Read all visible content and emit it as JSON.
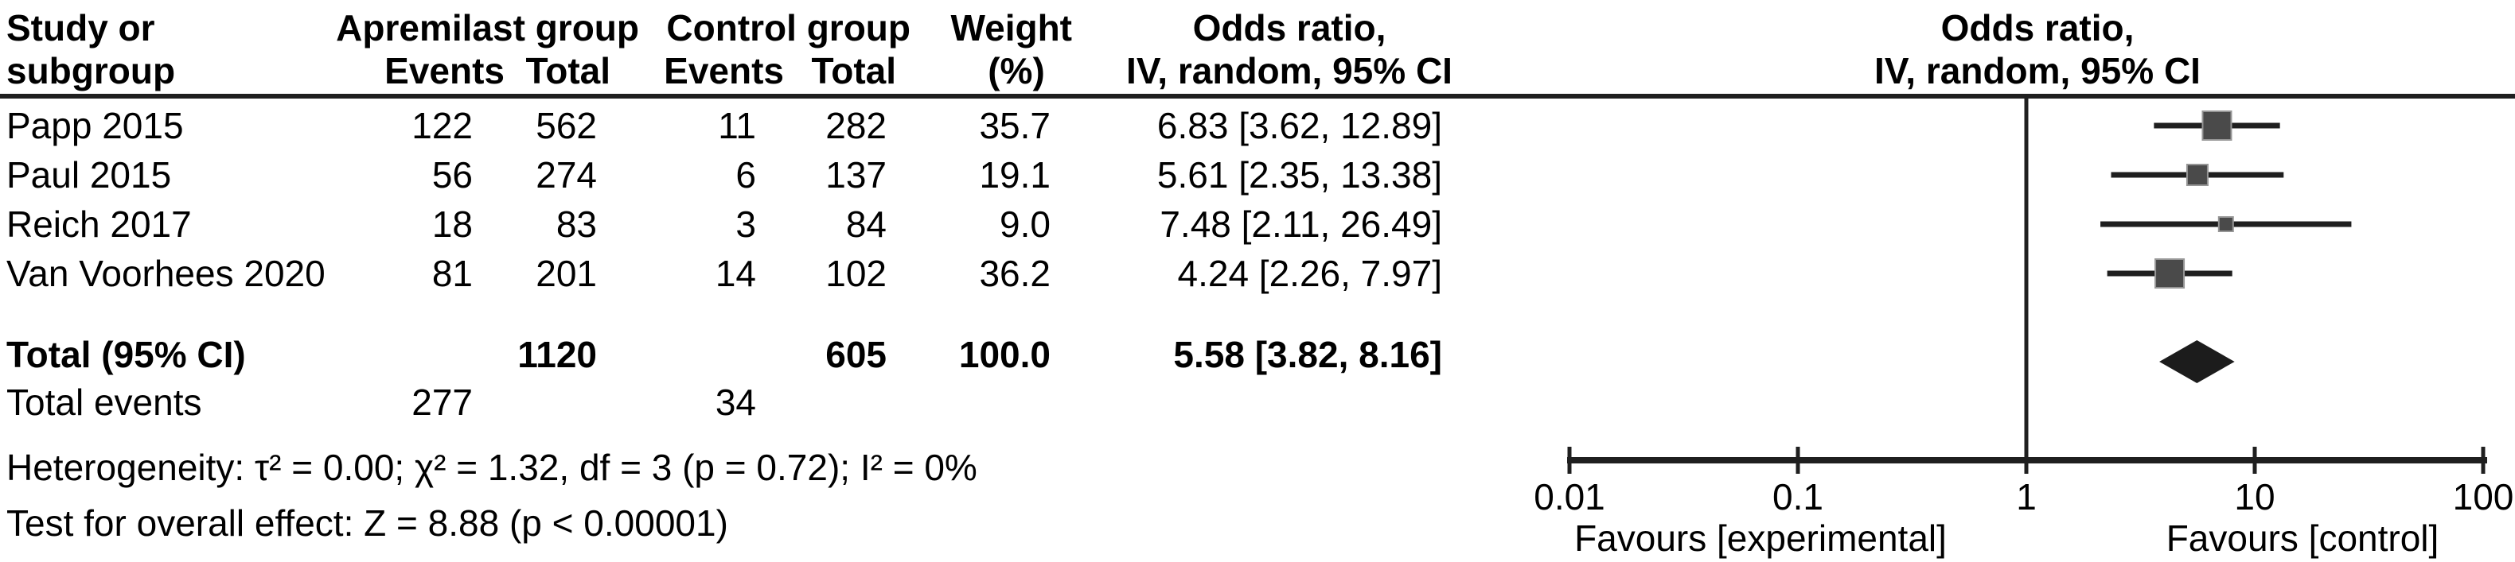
{
  "header": {
    "study_line1": "Study or",
    "study_line2": "subgroup",
    "apremilast_group": "Apremilast group",
    "control_group": "Control group",
    "events": "Events",
    "total": "Total",
    "weight_line1": "Weight",
    "weight_line2": "(%)",
    "or_line1": "Odds ratio,",
    "or_line2": "IV, random, 95% CI",
    "plot_or_line1": "Odds ratio,",
    "plot_or_line2": "IV, random, 95% CI"
  },
  "chart_data": {
    "type": "forest",
    "effect_measure": "Odds ratio, IV, random, 95% CI",
    "x_axis": {
      "scale": "log10",
      "ticks": [
        0.01,
        0.1,
        1,
        10,
        100
      ],
      "tick_labels": [
        "0.01",
        "0.1",
        "1",
        "10",
        "100"
      ],
      "left_label": "Favours [experimental]",
      "right_label": "Favours [control]",
      "null_line": 1
    },
    "studies": [
      {
        "name": "Papp 2015",
        "events_exp": "122",
        "total_exp": "562",
        "events_ctrl": "11",
        "total_ctrl": "282",
        "weight": "35.7",
        "or": 6.83,
        "ci_low": 3.62,
        "ci_high": 12.89,
        "or_label": "6.83 [3.62, 12.89]"
      },
      {
        "name": "Paul 2015",
        "events_exp": "56",
        "total_exp": "274",
        "events_ctrl": "6",
        "total_ctrl": "137",
        "weight": "19.1",
        "or": 5.61,
        "ci_low": 2.35,
        "ci_high": 13.38,
        "or_label": "5.61 [2.35, 13.38]"
      },
      {
        "name": "Reich 2017",
        "events_exp": "18",
        "total_exp": "83",
        "events_ctrl": "3",
        "total_ctrl": "84",
        "weight": "9.0",
        "or": 7.48,
        "ci_low": 2.11,
        "ci_high": 26.49,
        "or_label": "7.48 [2.11, 26.49]"
      },
      {
        "name": "Van Voorhees 2020",
        "events_exp": "81",
        "total_exp": "201",
        "events_ctrl": "14",
        "total_ctrl": "102",
        "weight": "36.2",
        "or": 4.24,
        "ci_low": 2.26,
        "ci_high": 7.97,
        "or_label": "4.24 [2.26, 7.97]"
      }
    ],
    "total": {
      "name": "Total (95% CI)",
      "total_exp": "1120",
      "total_ctrl": "605",
      "weight": "100.0",
      "or": 5.58,
      "ci_low": 3.82,
      "ci_high": 8.16,
      "or_label": "5.58 [3.82, 8.16]"
    },
    "total_events": {
      "label": "Total events",
      "exp": "277",
      "ctrl": "34"
    },
    "footnotes": {
      "heterogeneity": "Heterogeneity: τ² = 0.00; χ² = 1.32, df = 3 (p = 0.72); I² = 0%",
      "overall_effect": "Test for overall effect: Z = 8.88 (p < 0.00001)"
    },
    "colors": {
      "square": "#4a4a4a",
      "square_border": "#969696",
      "ci_line": "#1f1f1f",
      "diamond": "#1c1c1c",
      "axis": "#1f1f1f",
      "rule": "#1f1f1f",
      "text": "#000000"
    }
  }
}
